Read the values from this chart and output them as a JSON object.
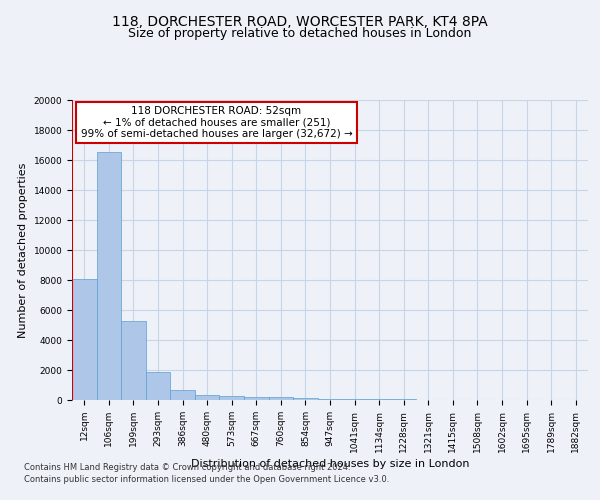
{
  "title_line1": "118, DORCHESTER ROAD, WORCESTER PARK, KT4 8PA",
  "title_line2": "Size of property relative to detached houses in London",
  "xlabel": "Distribution of detached houses by size in London",
  "ylabel": "Number of detached properties",
  "bar_values": [
    8100,
    16500,
    5300,
    1850,
    650,
    350,
    275,
    225,
    200,
    150,
    100,
    80,
    60,
    40,
    30,
    20,
    15,
    10,
    8,
    5,
    3
  ],
  "bar_labels": [
    "12sqm",
    "106sqm",
    "199sqm",
    "293sqm",
    "386sqm",
    "480sqm",
    "573sqm",
    "667sqm",
    "760sqm",
    "854sqm",
    "947sqm",
    "1041sqm",
    "1134sqm",
    "1228sqm",
    "1321sqm",
    "1415sqm",
    "1508sqm",
    "1602sqm",
    "1695sqm",
    "1789sqm",
    "1882sqm"
  ],
  "bar_color": "#aec6e8",
  "bar_edge_color": "#5a9fd4",
  "bar_edge_width": 0.5,
  "annotation_box_text": "118 DORCHESTER ROAD: 52sqm\n← 1% of detached houses are smaller (251)\n99% of semi-detached houses are larger (32,672) →",
  "annotation_box_color": "#ffffff",
  "annotation_box_edge_color": "#cc0000",
  "vline_color": "#cc0000",
  "ylim": [
    0,
    20000
  ],
  "yticks": [
    0,
    2000,
    4000,
    6000,
    8000,
    10000,
    12000,
    14000,
    16000,
    18000,
    20000
  ],
  "footer_line1": "Contains HM Land Registry data © Crown copyright and database right 2024.",
  "footer_line2": "Contains public sector information licensed under the Open Government Licence v3.0.",
  "background_color": "#eef2f8",
  "plot_background_color": "#eef2f8",
  "grid_color": "#c8d4e8",
  "title_fontsize": 10,
  "subtitle_fontsize": 9,
  "tick_fontsize": 6.5,
  "ylabel_fontsize": 8,
  "xlabel_fontsize": 8,
  "footer_fontsize": 6,
  "ann_fontsize": 7.5
}
